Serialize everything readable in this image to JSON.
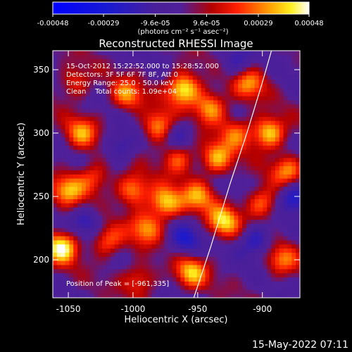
{
  "chart_data": {
    "type": "heatmap",
    "title": "Reconstructed RHESSI Image",
    "xlabel": "Heliocentric X (arcsec)",
    "ylabel": "Heliocentric Y (arcsec)",
    "xlim": [
      -1062,
      -871
    ],
    "ylim": [
      170,
      365
    ],
    "x_ticks": [
      -1050,
      -1000,
      -950,
      -900
    ],
    "x_tick_labels": [
      "-1050",
      "-1000",
      "-950",
      "-900"
    ],
    "y_ticks": [
      200,
      250,
      300,
      350
    ],
    "y_tick_labels": [
      "200",
      "250",
      "300",
      "350"
    ],
    "colorbar": {
      "ticks": [
        -0.00048,
        -0.00029,
        -9.6e-05,
        9.6e-05,
        0.00029,
        0.00048
      ],
      "tick_labels": [
        "-0.00048",
        "-0.00029",
        "-9.6e-05",
        "9.6e-05",
        "0.00029",
        "0.00048"
      ],
      "unit_label": "(photons cm⁻² s⁻¹ asec⁻²)",
      "range": [
        -0.00048,
        0.00048
      ]
    },
    "annotations": [
      "15-Oct-2012 15:22:52.000 to 15:28:52.000",
      "Detectors: 3F 5F 6F 7F 8F, Att 0",
      "Energy Range: 25.0 - 50.0 keV",
      "Clean    Total counts: 1.09e+04"
    ],
    "peak_label": "Position of Peak = [-961,335]",
    "peak": [
      -961,
      335
    ],
    "sources": [
      {
        "x": -1055,
        "y": 210,
        "v": 0.00046
      },
      {
        "x": -1050,
        "y": 255,
        "v": 0.00032
      },
      {
        "x": -1040,
        "y": 300,
        "v": 0.0003
      },
      {
        "x": -1030,
        "y": 265,
        "v": 0.00025
      },
      {
        "x": -1020,
        "y": 215,
        "v": 0.00028
      },
      {
        "x": -1005,
        "y": 330,
        "v": 0.0003
      },
      {
        "x": -1000,
        "y": 255,
        "v": 0.00034
      },
      {
        "x": -990,
        "y": 225,
        "v": 0.0003
      },
      {
        "x": -980,
        "y": 305,
        "v": 0.00036
      },
      {
        "x": -975,
        "y": 245,
        "v": 0.0004
      },
      {
        "x": -965,
        "y": 280,
        "v": 0.00028
      },
      {
        "x": -961,
        "y": 335,
        "v": 0.00048
      },
      {
        "x": -955,
        "y": 190,
        "v": 0.00035
      },
      {
        "x": -950,
        "y": 250,
        "v": 0.0003
      },
      {
        "x": -940,
        "y": 320,
        "v": 0.00036
      },
      {
        "x": -935,
        "y": 280,
        "v": 0.00034
      },
      {
        "x": -930,
        "y": 230,
        "v": 0.00038
      },
      {
        "x": -920,
        "y": 300,
        "v": 0.00026
      },
      {
        "x": -910,
        "y": 340,
        "v": 0.0003
      },
      {
        "x": -900,
        "y": 245,
        "v": 0.0003
      },
      {
        "x": -895,
        "y": 300,
        "v": 0.00042
      },
      {
        "x": -885,
        "y": 200,
        "v": 0.00026
      },
      {
        "x": -880,
        "y": 270,
        "v": 0.0003
      },
      {
        "x": -995,
        "y": 185,
        "v": 0.00024
      },
      {
        "x": -1045,
        "y": 340,
        "v": 0.00022
      }
    ],
    "negatives": [
      {
        "x": -1010,
        "y": 290,
        "v": -0.0002
      },
      {
        "x": -960,
        "y": 215,
        "v": -0.00022
      },
      {
        "x": -905,
        "y": 215,
        "v": -0.00024
      },
      {
        "x": -875,
        "y": 250,
        "v": -0.0003
      },
      {
        "x": -1035,
        "y": 230,
        "v": -0.00018
      },
      {
        "x": -920,
        "y": 355,
        "v": -0.00016
      },
      {
        "x": -965,
        "y": 300,
        "v": -0.0002
      }
    ],
    "limb": [
      [
        -953,
        170
      ],
      [
        -940,
        210
      ],
      [
        -925,
        260
      ],
      [
        -912,
        300
      ],
      [
        -900,
        340
      ],
      [
        -893,
        365
      ]
    ],
    "colors": {
      "negative": "#0000ff",
      "zero": "#50209a",
      "mid": "#ff1e00",
      "positive": "#ffffff"
    }
  },
  "footer": {
    "timestamp": "15-May-2022 07:11"
  }
}
